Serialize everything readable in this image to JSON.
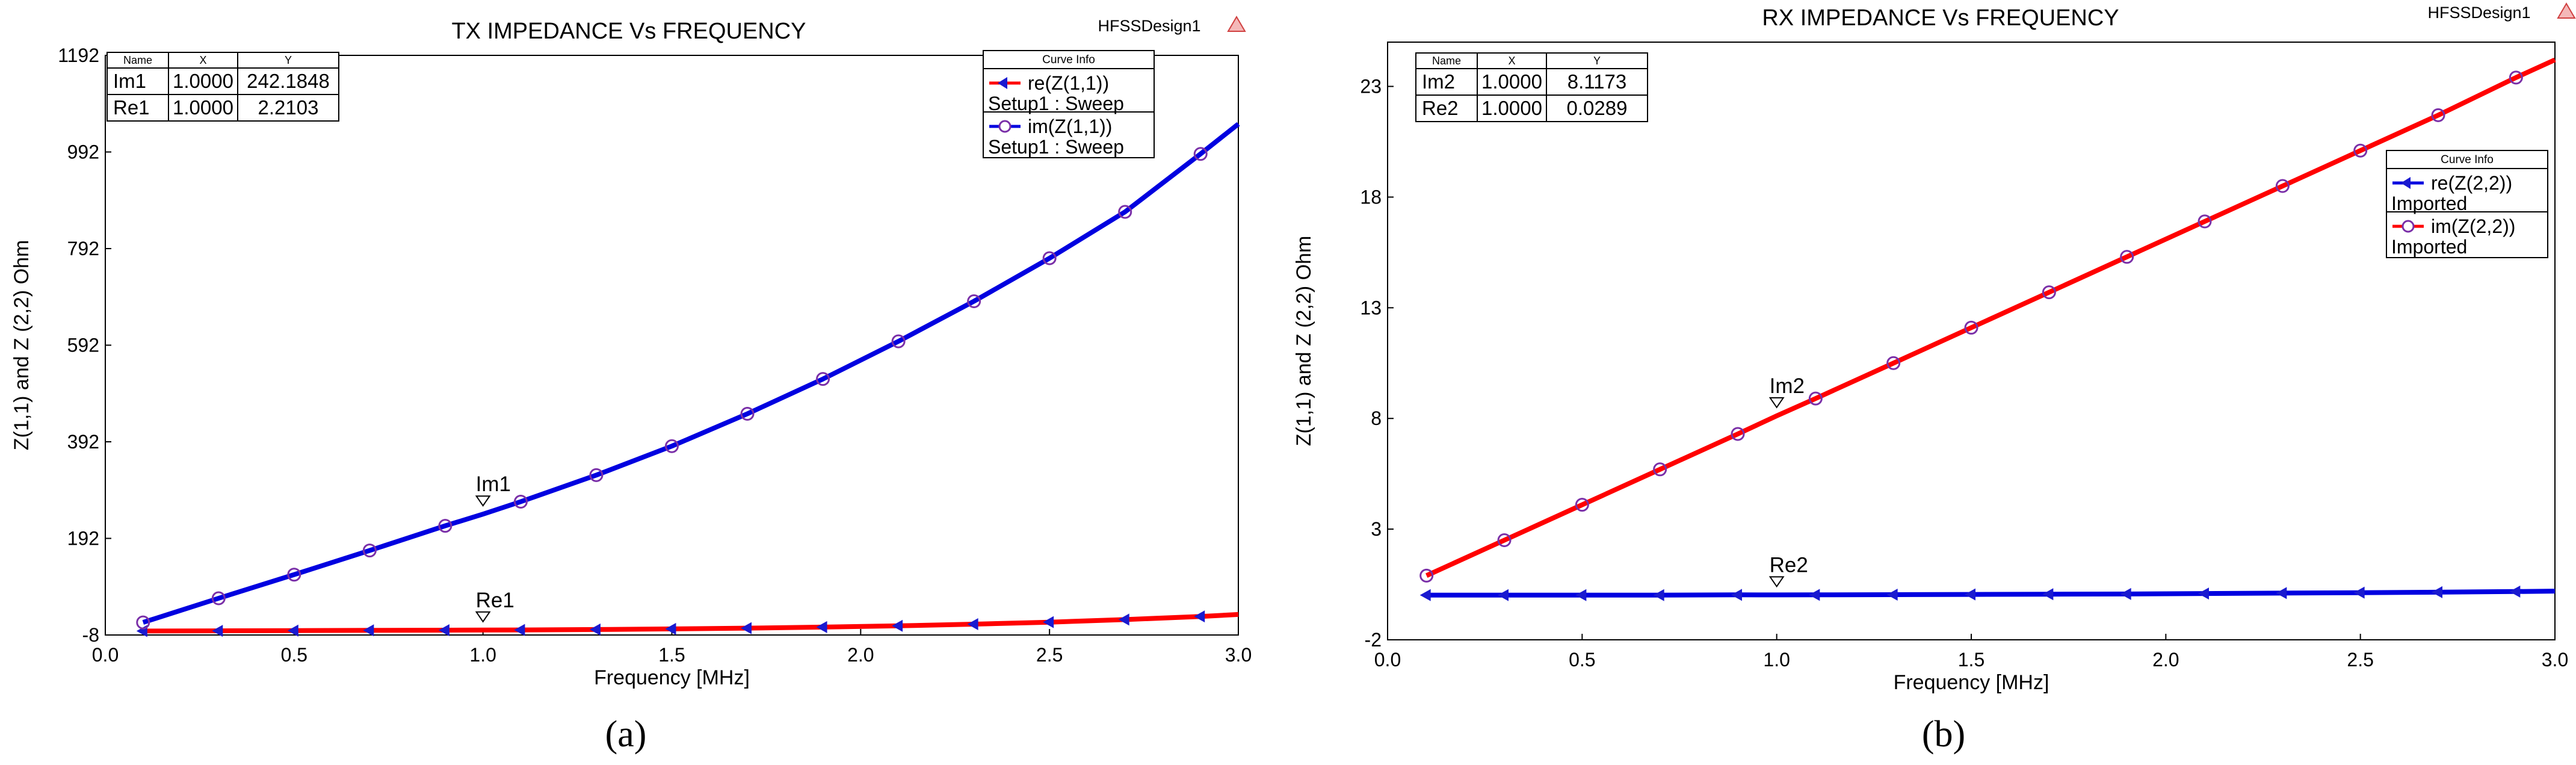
{
  "chart_data": [
    {
      "type": "line",
      "panel_label": "(a)",
      "panel_letter": "a",
      "title": "TX IMPEDANCE Vs FREQUENCY",
      "design": "HFSSDesign1",
      "xlabel": "Frequency [MHz]",
      "ylabel": "Z(1,1) and Z (2,2) Ohm",
      "xlim": [
        0.0,
        3.0
      ],
      "ylim": [
        -8,
        1192
      ],
      "xticks": [
        "0.0",
        "0.5",
        "1.0",
        "1.5",
        "2.0",
        "2.5",
        "3.0"
      ],
      "yticks": [
        "-8",
        "192",
        "392",
        "592",
        "792",
        "992",
        "1192"
      ],
      "x": [
        0.1,
        0.3,
        0.5,
        0.7,
        0.9,
        1.0,
        1.1,
        1.3,
        1.5,
        1.7,
        1.9,
        2.1,
        2.3,
        2.5,
        2.7,
        2.9,
        3.0
      ],
      "series": [
        {
          "name": "re(Z(1,1))",
          "source": "Setup1 : Sweep",
          "color": "#ff0000",
          "marker": "triangle-left",
          "values": [
            0.2,
            0.6,
            1.1,
            1.6,
            2.0,
            2.21,
            2.5,
            3.4,
            4.6,
            6.2,
            8.3,
            11.0,
            14.4,
            18.6,
            23.9,
            30.4,
            34.5
          ]
        },
        {
          "name": "im(Z(1,1))",
          "source": "Setup1 : Sweep",
          "color": "#0000e0",
          "marker": "circle",
          "values": [
            18,
            68,
            117,
            167,
            218,
            242.18,
            268,
            323,
            383,
            450,
            522,
            600,
            683,
            772,
            868,
            988,
            1050
          ]
        }
      ],
      "marker_table": {
        "headers": [
          "Name",
          "X",
          "Y"
        ],
        "rows": [
          [
            "Im1",
            "1.0000",
            "242.1848"
          ],
          [
            "Re1",
            "1.0000",
            "2.2103"
          ]
        ]
      },
      "annotations": [
        {
          "name": "Im1",
          "x": 1.0,
          "y": 242.18
        },
        {
          "name": "Re1",
          "x": 1.0,
          "y": 2.21
        }
      ],
      "legend_title": "Curve Info",
      "legend": "top-right"
    },
    {
      "type": "line",
      "panel_label": "(b)",
      "panel_letter": "b",
      "title": "RX IMPEDANCE Vs FREQUENCY",
      "design": "HFSSDesign1",
      "xlabel": "Frequency [MHz]",
      "ylabel": "Z(1,1) and Z (2,2) Ohm",
      "xlim": [
        0.0,
        3.0
      ],
      "ylim": [
        -2,
        25
      ],
      "xticks": [
        "0.0",
        "0.5",
        "1.0",
        "1.5",
        "2.0",
        "2.5",
        "3.0"
      ],
      "yticks": [
        "-2",
        "3",
        "8",
        "13",
        "18",
        "23"
      ],
      "x": [
        0.1,
        0.3,
        0.5,
        0.7,
        0.9,
        1.0,
        1.1,
        1.3,
        1.5,
        1.7,
        1.9,
        2.1,
        2.3,
        2.5,
        2.7,
        2.9,
        3.0
      ],
      "series": [
        {
          "name": "re(Z(2,2))",
          "source": "Imported",
          "color": "#0000e0",
          "marker": "triangle-left",
          "values": [
            0.02,
            0.02,
            0.02,
            0.02,
            0.03,
            0.0289,
            0.03,
            0.04,
            0.05,
            0.06,
            0.07,
            0.09,
            0.11,
            0.13,
            0.15,
            0.18,
            0.2
          ]
        },
        {
          "name": "im(Z(2,2))",
          "source": "Imported",
          "color": "#ff0000",
          "marker": "circle",
          "values": [
            0.9,
            2.5,
            4.1,
            5.7,
            7.3,
            8.1173,
            8.9,
            10.5,
            12.1,
            13.7,
            15.3,
            16.9,
            18.5,
            20.1,
            21.7,
            23.4,
            24.2
          ]
        }
      ],
      "marker_table": {
        "headers": [
          "Name",
          "X",
          "Y"
        ],
        "rows": [
          [
            "Im2",
            "1.0000",
            "8.1173"
          ],
          [
            "Re2",
            "1.0000",
            "0.0289"
          ]
        ]
      },
      "annotations": [
        {
          "name": "Im2",
          "x": 1.0,
          "y": 8.1173
        },
        {
          "name": "Re2",
          "x": 1.0,
          "y": 0.0289
        }
      ],
      "legend_title": "Curve Info",
      "legend": "top-right"
    }
  ]
}
